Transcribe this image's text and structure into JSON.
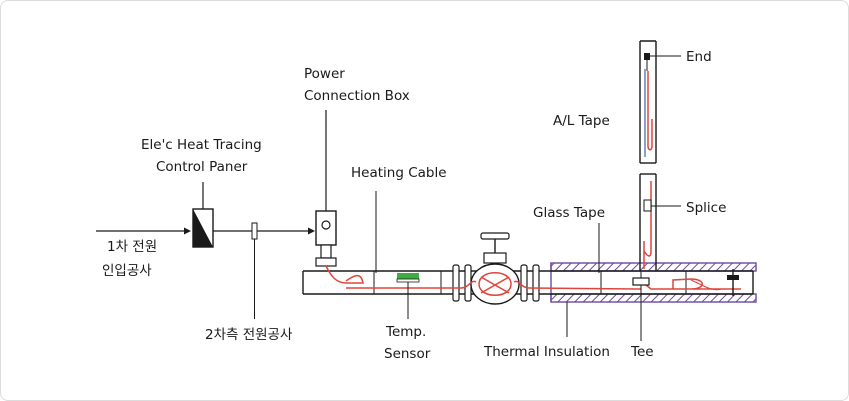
{
  "labels": {
    "power_box_1": "Power",
    "power_box_2": "Connection Box",
    "control_panel_1": "Ele'c Heat Tracing",
    "control_panel_2": "Control Paner",
    "heating_cable": "Heating Cable",
    "primary_power_1": "1차 전원",
    "primary_power_2": "인입공사",
    "secondary_power": "2차측 전원공사",
    "temp_sensor_1": "Temp.",
    "temp_sensor_2": "Sensor",
    "glass_tape": "Glass Tape",
    "al_tape": "A/L Tape",
    "end": "End",
    "splice": "Splice",
    "thermal_insulation": "Thermal Insulation",
    "tee": "Tee"
  },
  "colors": {
    "line": "#1a1a1a",
    "cable": "#e0443c",
    "insulation": "#6a4aa0",
    "sensor": "#3fae3f",
    "glass": "#8aa2c8"
  }
}
